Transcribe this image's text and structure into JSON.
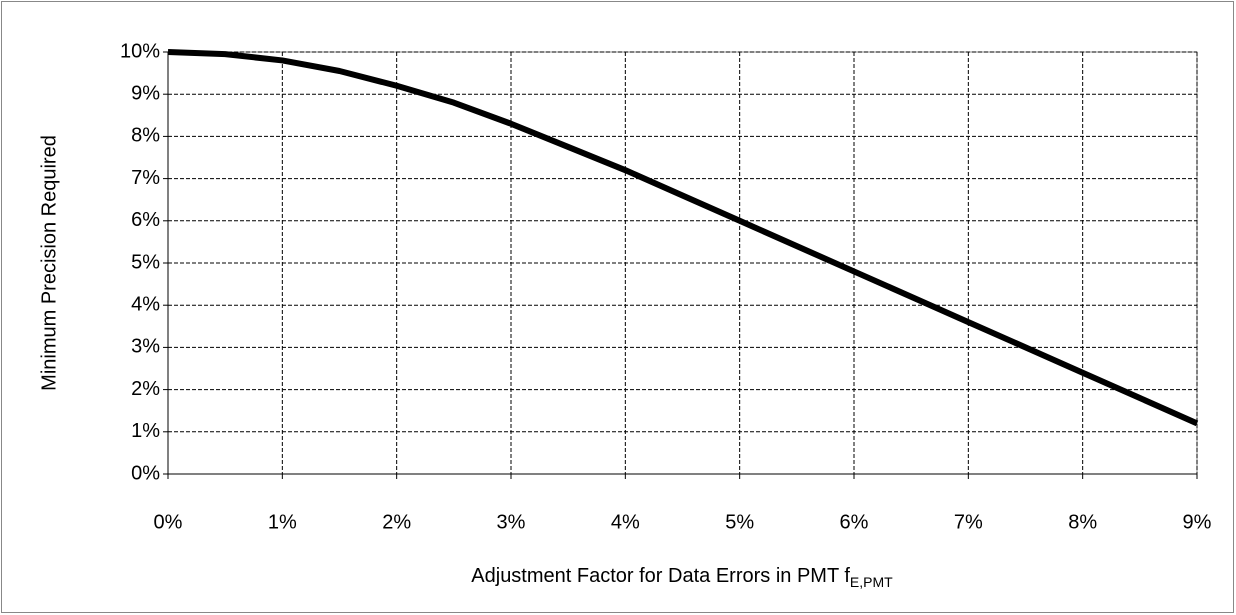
{
  "chart_data": {
    "type": "line",
    "y_label": "Minimum Precision Required",
    "x_label": "Adjustment Factor for Data Errors in PMT f",
    "x_label_subscript": "E,PMT",
    "x": [
      0,
      0.5,
      1,
      1.5,
      2,
      2.5,
      3,
      3.5,
      4,
      4.5,
      5,
      5.5,
      6,
      6.5,
      7,
      7.5,
      8,
      8.5,
      9
    ],
    "values": [
      10,
      9.95,
      9.8,
      9.55,
      9.2,
      8.8,
      8.3,
      7.75,
      7.2,
      6.6,
      6.0,
      5.4,
      4.8,
      4.2,
      3.6,
      3.0,
      2.4,
      1.8,
      1.2
    ],
    "color": "#000000",
    "xlim": [
      0,
      9
    ],
    "xticks": [
      {
        "value": 0,
        "label": "0%"
      },
      {
        "value": 1,
        "label": "1%"
      },
      {
        "value": 2,
        "label": "2%"
      },
      {
        "value": 3,
        "label": "3%"
      },
      {
        "value": 4,
        "label": "4%"
      },
      {
        "value": 5,
        "label": "5%"
      },
      {
        "value": 6,
        "label": "6%"
      },
      {
        "value": 7,
        "label": "7%"
      },
      {
        "value": 8,
        "label": "8%"
      },
      {
        "value": 9,
        "label": "9%"
      }
    ],
    "ylim": [
      0,
      10
    ],
    "yticks": [
      {
        "value": 0,
        "label": "0%"
      },
      {
        "value": 1,
        "label": "1%"
      },
      {
        "value": 2,
        "label": "2%"
      },
      {
        "value": 3,
        "label": "3%"
      },
      {
        "value": 4,
        "label": "4%"
      },
      {
        "value": 5,
        "label": "5%"
      },
      {
        "value": 6,
        "label": "6%"
      },
      {
        "value": 7,
        "label": "7%"
      },
      {
        "value": 8,
        "label": "8%"
      },
      {
        "value": 9,
        "label": "9%"
      },
      {
        "value": 10,
        "label": "10%"
      }
    ],
    "grid": true
  }
}
